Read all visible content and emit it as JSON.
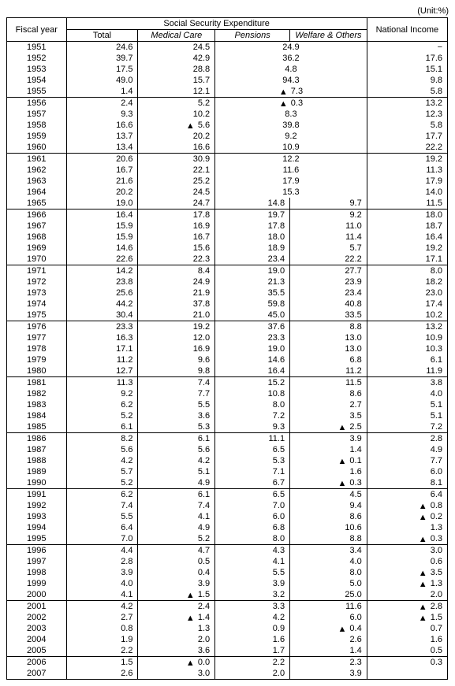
{
  "unit_label": "(Unit:%)",
  "triangle": "▲",
  "headers": {
    "fiscal_year": "Fiscal year",
    "sse": "Social Security Expenditure",
    "total": "Total",
    "medical": "Medical Care",
    "pensions": "Pensions",
    "welfare": "Welfare & Others",
    "national_income": "National  Income"
  },
  "column_widths": {
    "year": 70,
    "total": 90,
    "medical": 95,
    "pensions": 90,
    "welfare": 95,
    "ni": 100
  },
  "groups": [
    {
      "rows": [
        {
          "year": "1951",
          "total": "24.6",
          "medical": "24.5",
          "pen_merged": "24.9",
          "ni": "−"
        },
        {
          "year": "1952",
          "total": "39.7",
          "medical": "42.9",
          "pen_merged": "36.2",
          "ni": "17.6"
        },
        {
          "year": "1953",
          "total": "17.5",
          "medical": "28.8",
          "pen_merged": "4.8",
          "ni": "15.1"
        },
        {
          "year": "1954",
          "total": "49.0",
          "medical": "15.7",
          "pen_merged": "94.3",
          "ni": "9.8"
        },
        {
          "year": "1955",
          "total": "1.4",
          "medical": "12.1",
          "pen_merged": "▲ 7.3",
          "ni": "5.8"
        }
      ]
    },
    {
      "rows": [
        {
          "year": "1956",
          "total": "2.4",
          "medical": "5.2",
          "pen_merged": "▲ 0.3",
          "ni": "13.2"
        },
        {
          "year": "1957",
          "total": "9.3",
          "medical": "10.2",
          "pen_merged": "8.3",
          "ni": "12.3"
        },
        {
          "year": "1958",
          "total": "16.6",
          "medical": "▲ 5.6",
          "pen_merged": "39.8",
          "ni": "5.8"
        },
        {
          "year": "1959",
          "total": "13.7",
          "medical": "20.2",
          "pen_merged": "9.2",
          "ni": "17.7"
        },
        {
          "year": "1960",
          "total": "13.4",
          "medical": "16.6",
          "pen_merged": "10.9",
          "ni": "22.2"
        }
      ]
    },
    {
      "rows": [
        {
          "year": "1961",
          "total": "20.6",
          "medical": "30.9",
          "pen_merged": "12.2",
          "ni": "19.2"
        },
        {
          "year": "1962",
          "total": "16.7",
          "medical": "22.1",
          "pen_merged": "11.6",
          "ni": "11.3"
        },
        {
          "year": "1963",
          "total": "21.6",
          "medical": "25.2",
          "pen_merged": "17.9",
          "ni": "17.9"
        },
        {
          "year": "1964",
          "total": "20.2",
          "medical": "24.5",
          "pen_merged": "15.3",
          "ni": "14.0"
        },
        {
          "year": "1965",
          "total": "19.0",
          "medical": "24.7",
          "pensions": "14.8",
          "welfare": "9.7",
          "ni": "11.5"
        }
      ]
    },
    {
      "rows": [
        {
          "year": "1966",
          "total": "16.4",
          "medical": "17.8",
          "pensions": "19.7",
          "welfare": "9.2",
          "ni": "18.0"
        },
        {
          "year": "1967",
          "total": "15.9",
          "medical": "16.9",
          "pensions": "17.8",
          "welfare": "11.0",
          "ni": "18.7"
        },
        {
          "year": "1968",
          "total": "15.9",
          "medical": "16.7",
          "pensions": "18.0",
          "welfare": "11.4",
          "ni": "16.4"
        },
        {
          "year": "1969",
          "total": "14.6",
          "medical": "15.6",
          "pensions": "18.9",
          "welfare": "5.7",
          "ni": "19.2"
        },
        {
          "year": "1970",
          "total": "22.6",
          "medical": "22.3",
          "pensions": "23.4",
          "welfare": "22.2",
          "ni": "17.1"
        }
      ]
    },
    {
      "rows": [
        {
          "year": "1971",
          "total": "14.2",
          "medical": "8.4",
          "pensions": "19.0",
          "welfare": "27.7",
          "ni": "8.0"
        },
        {
          "year": "1972",
          "total": "23.8",
          "medical": "24.9",
          "pensions": "21.3",
          "welfare": "23.9",
          "ni": "18.2"
        },
        {
          "year": "1973",
          "total": "25.6",
          "medical": "21.9",
          "pensions": "35.5",
          "welfare": "23.4",
          "ni": "23.0"
        },
        {
          "year": "1974",
          "total": "44.2",
          "medical": "37.8",
          "pensions": "59.8",
          "welfare": "40.8",
          "ni": "17.4"
        },
        {
          "year": "1975",
          "total": "30.4",
          "medical": "21.0",
          "pensions": "45.0",
          "welfare": "33.5",
          "ni": "10.2"
        }
      ]
    },
    {
      "rows": [
        {
          "year": "1976",
          "total": "23.3",
          "medical": "19.2",
          "pensions": "37.6",
          "welfare": "8.8",
          "ni": "13.2"
        },
        {
          "year": "1977",
          "total": "16.3",
          "medical": "12.0",
          "pensions": "23.3",
          "welfare": "13.0",
          "ni": "10.9"
        },
        {
          "year": "1978",
          "total": "17.1",
          "medical": "16.9",
          "pensions": "19.0",
          "welfare": "13.0",
          "ni": "10.3"
        },
        {
          "year": "1979",
          "total": "11.2",
          "medical": "9.6",
          "pensions": "14.6",
          "welfare": "6.8",
          "ni": "6.1"
        },
        {
          "year": "1980",
          "total": "12.7",
          "medical": "9.8",
          "pensions": "16.4",
          "welfare": "11.2",
          "ni": "11.9"
        }
      ]
    },
    {
      "rows": [
        {
          "year": "1981",
          "total": "11.3",
          "medical": "7.4",
          "pensions": "15.2",
          "welfare": "11.5",
          "ni": "3.8"
        },
        {
          "year": "1982",
          "total": "9.2",
          "medical": "7.7",
          "pensions": "10.8",
          "welfare": "8.6",
          "ni": "4.0"
        },
        {
          "year": "1983",
          "total": "6.2",
          "medical": "5.5",
          "pensions": "8.0",
          "welfare": "2.7",
          "ni": "5.1"
        },
        {
          "year": "1984",
          "total": "5.2",
          "medical": "3.6",
          "pensions": "7.2",
          "welfare": "3.5",
          "ni": "5.1"
        },
        {
          "year": "1985",
          "total": "6.1",
          "medical": "5.3",
          "pensions": "9.3",
          "welfare": "▲ 2.5",
          "ni": "7.2"
        }
      ]
    },
    {
      "rows": [
        {
          "year": "1986",
          "total": "8.2",
          "medical": "6.1",
          "pensions": "11.1",
          "welfare": "3.9",
          "ni": "2.8"
        },
        {
          "year": "1987",
          "total": "5.6",
          "medical": "5.6",
          "pensions": "6.5",
          "welfare": "1.4",
          "ni": "4.9"
        },
        {
          "year": "1988",
          "total": "4.2",
          "medical": "4.2",
          "pensions": "5.3",
          "welfare": "▲ 0.1",
          "ni": "7.7"
        },
        {
          "year": "1989",
          "total": "5.7",
          "medical": "5.1",
          "pensions": "7.1",
          "welfare": "1.6",
          "ni": "6.0"
        },
        {
          "year": "1990",
          "total": "5.2",
          "medical": "4.9",
          "pensions": "6.7",
          "welfare": "▲ 0.3",
          "ni": "8.1"
        }
      ]
    },
    {
      "rows": [
        {
          "year": "1991",
          "total": "6.2",
          "medical": "6.1",
          "pensions": "6.5",
          "welfare": "4.5",
          "ni": "6.4"
        },
        {
          "year": "1992",
          "total": "7.4",
          "medical": "7.4",
          "pensions": "7.0",
          "welfare": "9.4",
          "ni": "▲ 0.8"
        },
        {
          "year": "1993",
          "total": "5.5",
          "medical": "4.1",
          "pensions": "6.0",
          "welfare": "8.6",
          "ni": "▲ 0.2"
        },
        {
          "year": "1994",
          "total": "6.4",
          "medical": "4.9",
          "pensions": "6.8",
          "welfare": "10.6",
          "ni": "1.3"
        },
        {
          "year": "1995",
          "total": "7.0",
          "medical": "5.2",
          "pensions": "8.0",
          "welfare": "8.8",
          "ni": "▲ 0.3"
        }
      ]
    },
    {
      "rows": [
        {
          "year": "1996",
          "total": "4.4",
          "medical": "4.7",
          "pensions": "4.3",
          "welfare": "3.4",
          "ni": "3.0"
        },
        {
          "year": "1997",
          "total": "2.8",
          "medical": "0.5",
          "pensions": "4.1",
          "welfare": "4.0",
          "ni": "0.6"
        },
        {
          "year": "1998",
          "total": "3.9",
          "medical": "0.4",
          "pensions": "5.5",
          "welfare": "8.0",
          "ni": "▲ 3.5"
        },
        {
          "year": "1999",
          "total": "4.0",
          "medical": "3.9",
          "pensions": "3.9",
          "welfare": "5.0",
          "ni": "▲ 1.3"
        },
        {
          "year": "2000",
          "total": "4.1",
          "medical": "▲ 1.5",
          "pensions": "3.2",
          "welfare": "25.0",
          "ni": "2.0"
        }
      ]
    },
    {
      "rows": [
        {
          "year": "2001",
          "total": "4.2",
          "medical": "2.4",
          "pensions": "3.3",
          "welfare": "11.6",
          "ni": "▲ 2.8"
        },
        {
          "year": "2002",
          "total": "2.7",
          "medical": "▲ 1.4",
          "pensions": "4.2",
          "welfare": "6.0",
          "ni": "▲ 1.5"
        },
        {
          "year": "2003",
          "total": "0.8",
          "medical": "1.3",
          "pensions": "0.9",
          "welfare": "▲ 0.4",
          "ni": "0.7"
        },
        {
          "year": "2004",
          "total": "1.9",
          "medical": "2.0",
          "pensions": "1.6",
          "welfare": "2.6",
          "ni": "1.6"
        },
        {
          "year": "2005",
          "total": "2.2",
          "medical": "3.6",
          "pensions": "1.7",
          "welfare": "1.4",
          "ni": "0.5"
        }
      ]
    },
    {
      "rows": [
        {
          "year": "2006",
          "total": "1.5",
          "medical": "▲ 0.0",
          "pensions": "2.2",
          "welfare": "2.3",
          "ni": "0.3"
        },
        {
          "year": "2007",
          "total": "2.6",
          "medical": "3.0",
          "pensions": "2.0",
          "welfare": "3.9",
          "ni": ""
        }
      ]
    }
  ]
}
